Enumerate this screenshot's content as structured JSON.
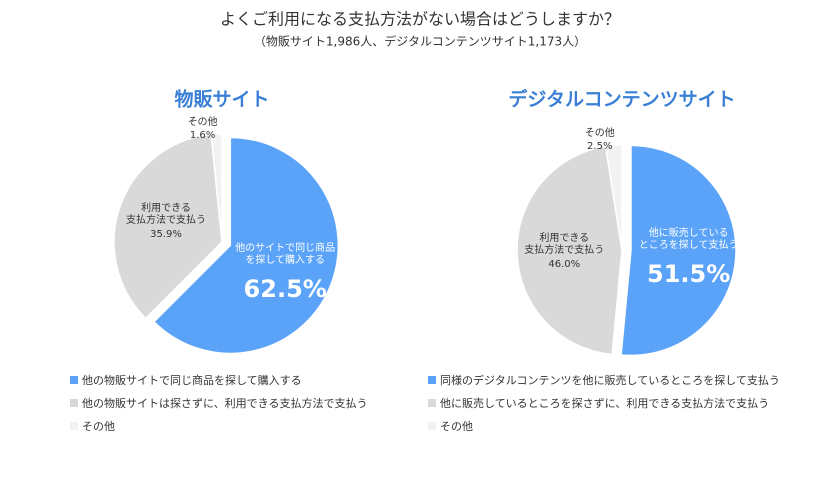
{
  "header": {
    "title": "よくご利用になる支払方法がない場合はどうしますか？",
    "subtitle": "（物販サイト1,986人、デジタルコンテンツサイト1,173人）"
  },
  "chart_data": [
    {
      "type": "pie",
      "title": "物販サイト",
      "categories": [
        "他の物販サイトで同じ商品を探して購入する",
        "他の物販サイトは探さずに、利用できる支払方法で支払う",
        "その他"
      ],
      "values": [
        62.5,
        35.9,
        1.6
      ],
      "value_labels": [
        "62.5%",
        "35.9%",
        "1.6%"
      ],
      "slice_labels": [
        [
          "他のサイトで同じ商品",
          "を探して購入する"
        ],
        [
          "利用できる",
          "支払方法で支払う"
        ],
        [
          "その他"
        ]
      ],
      "colors": [
        "#5ba3f8",
        "#d9d9d9",
        "#f2f2f2"
      ]
    },
    {
      "type": "pie",
      "title": "デジタルコンテンツサイト",
      "categories": [
        "同様のデジタルコンテンツを他に販売しているところを探して支払う",
        "他に販売しているところを探さずに、利用できる支払方法で支払う",
        "その他"
      ],
      "values": [
        51.5,
        46.0,
        2.5
      ],
      "value_labels": [
        "51.5%",
        "46.0%",
        "2.5%"
      ],
      "slice_labels": [
        [
          "他に販売している",
          "ところを探して支払う"
        ],
        [
          "利用できる",
          "支払方法で支払う"
        ],
        [
          "その他"
        ]
      ],
      "colors": [
        "#5ba3f8",
        "#d9d9d9",
        "#f2f2f2"
      ]
    }
  ]
}
